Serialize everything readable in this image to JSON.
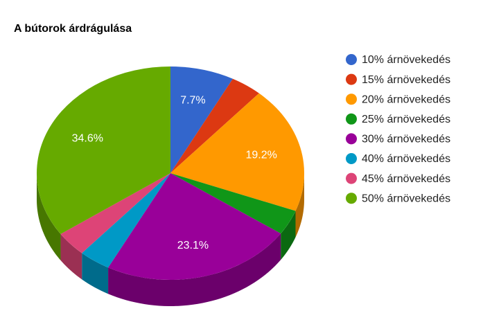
{
  "chart_data": {
    "type": "pie",
    "title": "A bútorok árdrágulása",
    "categories": [
      "10% árnövekedés",
      "15% árnövekedés",
      "20% árnövekedés",
      "25% árnövekedés",
      "30% árnövekedés",
      "40% árnövekedés",
      "45% árnövekedés",
      "50% árnövekedés"
    ],
    "values": [
      7.7,
      3.8,
      19.2,
      3.8,
      23.1,
      3.8,
      3.8,
      34.6
    ],
    "value_labels": [
      "7.7%",
      null,
      "19.2%",
      null,
      "23.1%",
      null,
      null,
      "34.6%"
    ],
    "colors": [
      "#3366cc",
      "#dc3912",
      "#ff9900",
      "#109618",
      "#990099",
      "#0099c6",
      "#dd4477",
      "#66aa00"
    ],
    "legend": "right",
    "three_d": true
  }
}
